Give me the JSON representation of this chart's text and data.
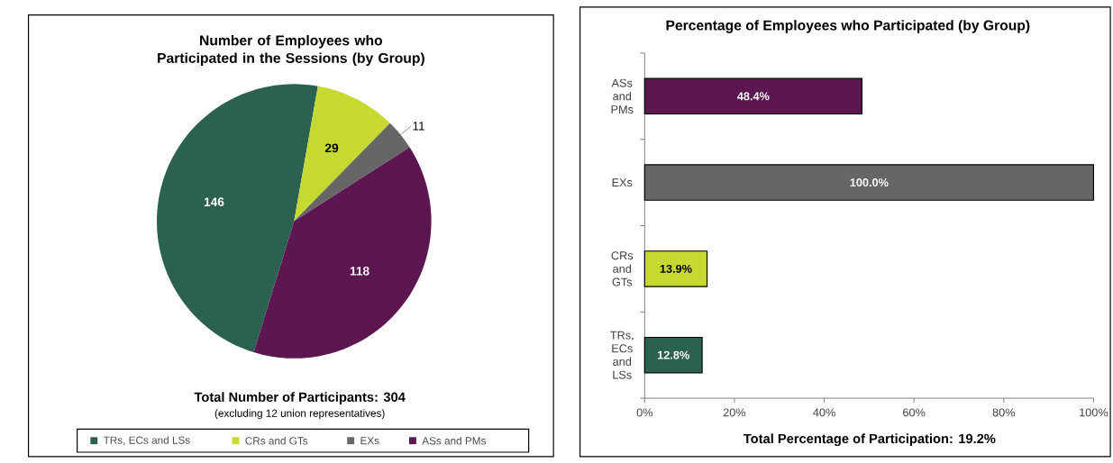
{
  "chart_data": [
    {
      "type": "pie",
      "title": "Number of Employees who Participated in the Sessions (by Group)",
      "categories": [
        "TRs, ECs and LSs",
        "CRs and GTs",
        "EXs",
        "ASs and PMs"
      ],
      "values": [
        146,
        29,
        11,
        118
      ],
      "colors": [
        "#2a6150",
        "#c6d930",
        "#666666",
        "#5c1650"
      ],
      "data_labels": true,
      "legend": "bottom",
      "annotations": [
        "Total Number of Participants: 304",
        "(excluding 12 union representatives)"
      ]
    },
    {
      "type": "bar",
      "orientation": "horizontal",
      "title": "Percentage of Employees who Participated (by Group)",
      "categories": [
        "ASs and PMs",
        "EXs",
        "CRs and GTs",
        "TRs, ECs and LSs"
      ],
      "values": [
        48.4,
        100,
        13.9,
        12.8
      ],
      "colors": [
        "#5c1650",
        "#666666",
        "#c6d930",
        "#2a6150"
      ],
      "value_labels": [
        "48.4%",
        "100.0%",
        "13.9%",
        "12.8%"
      ],
      "xlim": [
        0,
        100
      ],
      "xticks": [
        {
          "value": 0,
          "label": "0%"
        },
        {
          "value": 20,
          "label": "20%"
        },
        {
          "value": 40,
          "label": "40%"
        },
        {
          "value": 60,
          "label": "60%"
        },
        {
          "value": 80,
          "label": "80%"
        },
        {
          "value": 100,
          "label": "100%"
        }
      ],
      "annotations": [
        "Total Percentage of Participation: 19.2%"
      ]
    }
  ]
}
